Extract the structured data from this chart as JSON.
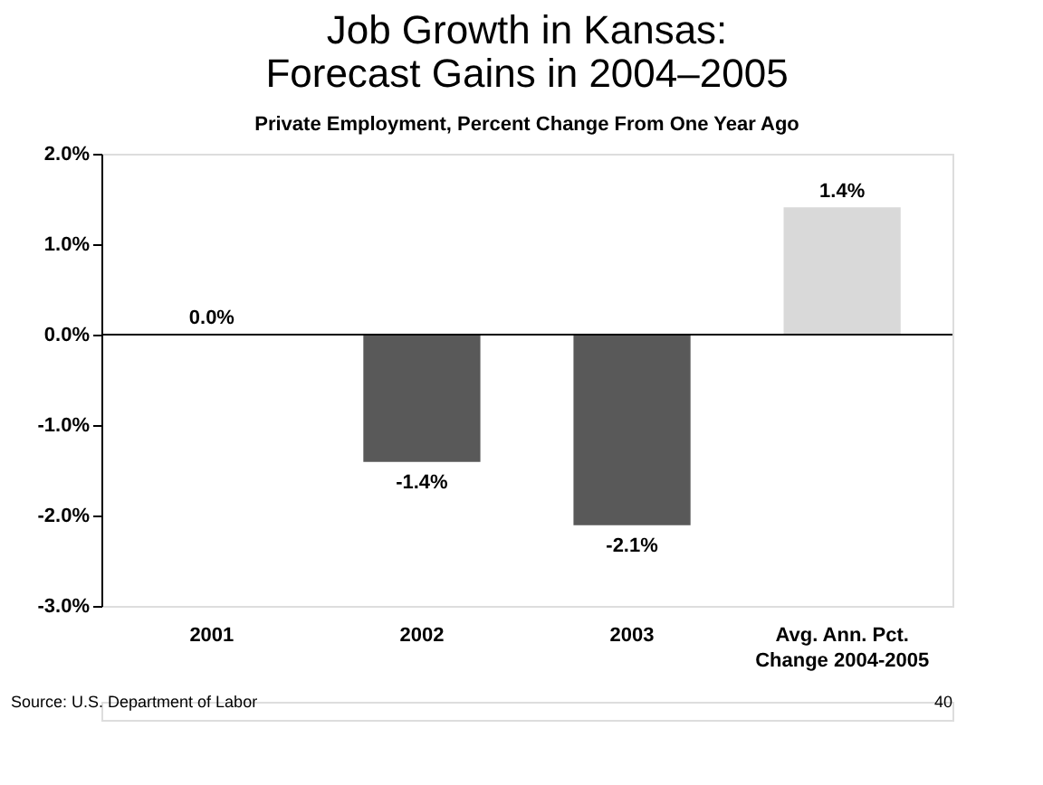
{
  "chart_data": {
    "type": "bar",
    "title": "Job Growth in Kansas:\nForecast Gains in 2004–2005",
    "subtitle": "Private Employment, Percent Change From One Year Ago",
    "categories": [
      "2001",
      "2002",
      "2003",
      "Avg. Ann. Pct.\nChange 2004-2005"
    ],
    "values": [
      0.0,
      -1.4,
      -2.1,
      1.4
    ],
    "colors": [
      "#333333",
      "#595959",
      "#595959",
      "#d9d9d9"
    ],
    "value_labels": [
      "0.0%",
      "-1.4%",
      "-2.1%",
      "1.4%"
    ],
    "ylim": [
      -3,
      2
    ],
    "yticks": [
      {
        "value": -3,
        "label": "-3.0%"
      },
      {
        "value": -2,
        "label": "-2.0%"
      },
      {
        "value": -1,
        "label": "-1.0%"
      },
      {
        "value": 0,
        "label": "0.0%"
      },
      {
        "value": 1,
        "label": "1.0%"
      },
      {
        "value": 2,
        "label": "2.0%"
      }
    ],
    "ref_lines": [
      {
        "axis": "y",
        "value": 0,
        "color": "#000000"
      }
    ],
    "grid": false,
    "annotations": [
      "Source: U.S. Department of Labor",
      "40"
    ]
  }
}
